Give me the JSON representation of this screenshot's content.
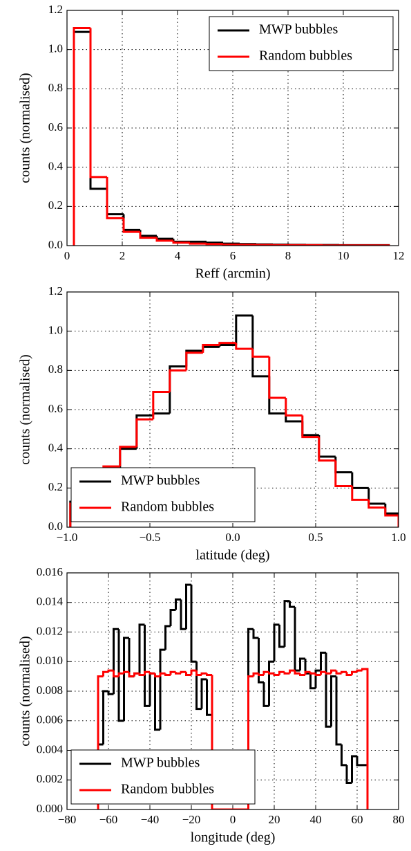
{
  "chart_data": [
    {
      "type": "histogram",
      "xlabel": "Reff (arcmin)",
      "ylabel": "counts (normalised)",
      "bins": [
        0.25,
        0.85,
        1.45,
        2.05,
        2.65,
        3.25,
        3.85,
        4.45,
        5.05,
        5.65,
        6.25,
        6.85,
        7.45,
        8.05,
        8.65,
        9.25,
        9.85,
        10.45,
        11.05,
        11.65
      ],
      "series": [
        {
          "name": "MWP bubbles",
          "color": "#000000",
          "values": [
            1.09,
            0.29,
            0.16,
            0.08,
            0.05,
            0.035,
            0.02,
            0.02,
            0.015,
            0.01,
            0.008,
            0.006,
            0.005,
            0.004,
            0.003,
            0.003,
            0.002,
            0.002,
            0.002
          ]
        },
        {
          "name": "Random bubbles",
          "color": "#ff0000",
          "values": [
            1.11,
            0.35,
            0.14,
            0.07,
            0.04,
            0.025,
            0.015,
            0.01,
            0.008,
            0.005,
            0.004,
            0.003,
            0.002,
            0.002,
            0.002,
            0.001,
            0.001,
            0.001,
            0.001
          ]
        }
      ],
      "xlim": [
        0,
        12
      ],
      "ylim": [
        0,
        1.2
      ],
      "xticks": [
        0,
        2,
        4,
        6,
        8,
        10,
        12
      ],
      "yticks": [
        {
          "value": 0,
          "label": "0.0"
        },
        0.2,
        0.4,
        0.6,
        0.8,
        {
          "value": 1,
          "label": "1.0"
        },
        1.2
      ],
      "grid": true,
      "legend": "upper right"
    },
    {
      "type": "histogram",
      "xlabel": "latitude (deg)",
      "ylabel": "counts (normalised)",
      "bins": [
        -0.98,
        -0.88,
        -0.78,
        -0.68,
        -0.58,
        -0.48,
        -0.38,
        -0.28,
        -0.18,
        -0.08,
        0.02,
        0.12,
        0.22,
        0.32,
        0.42,
        0.52,
        0.62,
        0.72,
        0.82,
        0.92,
        1.0
      ],
      "series": [
        {
          "name": "MWP bubbles",
          "color": "#000000",
          "values": [
            0.13,
            0.28,
            0.3,
            0.4,
            0.57,
            0.58,
            0.82,
            0.9,
            0.92,
            0.93,
            1.08,
            0.77,
            0.58,
            0.54,
            0.47,
            0.36,
            0.28,
            0.2,
            0.12,
            0.07
          ]
        },
        {
          "name": "Random bubbles",
          "color": "#ff0000",
          "values": [
            0.12,
            0.3,
            0.31,
            0.41,
            0.55,
            0.69,
            0.8,
            0.89,
            0.93,
            0.94,
            0.91,
            0.87,
            0.66,
            0.57,
            0.46,
            0.34,
            0.21,
            0.14,
            0.1,
            0.06
          ]
        }
      ],
      "xlim": [
        -1,
        1
      ],
      "ylim": [
        0,
        1.2
      ],
      "xticks": [
        {
          "value": -1,
          "label": "−1.0"
        },
        {
          "value": -0.5,
          "label": "−0.5"
        },
        {
          "value": 0,
          "label": "0.0"
        },
        0.5,
        {
          "value": 1,
          "label": "1.0"
        }
      ],
      "yticks": [
        {
          "value": 0,
          "label": "0.0"
        },
        0.2,
        0.4,
        0.6,
        0.8,
        {
          "value": 1,
          "label": "1.0"
        },
        1.2
      ],
      "grid": true,
      "legend": "lower left"
    },
    {
      "type": "histogram",
      "xlabel": "longitude (deg)",
      "ylabel": "counts (normalised)",
      "bins": [
        -65,
        -62.5,
        -60,
        -57.5,
        -55,
        -52.5,
        -50,
        -47.5,
        -45,
        -42.5,
        -40,
        -37.5,
        -35,
        -32.5,
        -30,
        -27.5,
        -25,
        -22.5,
        -20,
        -17.5,
        -15,
        -12.5,
        -10,
        -7.5,
        -5,
        -2.5,
        0,
        2.5,
        5,
        7.5,
        10,
        12.5,
        15,
        17.5,
        20,
        22.5,
        25,
        27.5,
        30,
        32.5,
        35,
        37.5,
        40,
        42.5,
        45,
        47.5,
        50,
        52.5,
        55,
        57.5,
        60,
        62.5,
        65
      ],
      "series": [
        {
          "name": "MWP bubbles",
          "color": "#000000",
          "values": [
            0.0044,
            0.008,
            0.0078,
            0.0122,
            0.006,
            0.0116,
            0.009,
            0.0092,
            0.0125,
            0.007,
            0.0092,
            0.0054,
            0.0108,
            0.0124,
            0.0135,
            0.0142,
            0.0122,
            0.0152,
            0.01,
            0.0068,
            0.0088,
            0.0064,
            0,
            0,
            0,
            0,
            0,
            0,
            0,
            0.0122,
            0.0116,
            0.0086,
            0.007,
            0.01,
            0.0125,
            0.011,
            0.0141,
            0.0137,
            0.0094,
            0.0102,
            0.0092,
            0.0082,
            0.0094,
            0.0106,
            0.0056,
            0.009,
            0.0044,
            0.003,
            0.0018,
            0.0036,
            0.003,
            0.003
          ]
        },
        {
          "name": "Random bubbles",
          "color": "#ff0000",
          "values": [
            0.009,
            0.0093,
            0.0094,
            0.009,
            0.0092,
            0.0093,
            0.009,
            0.0092,
            0.0091,
            0.0093,
            0.0092,
            0.009,
            0.0092,
            0.0091,
            0.0093,
            0.0092,
            0.0093,
            0.0091,
            0.0094,
            0.0091,
            0.0092,
            0.0091,
            0,
            0,
            0,
            0,
            0,
            0,
            0,
            0.009,
            0.0092,
            0.0091,
            0.0093,
            0.0092,
            0.0091,
            0.0093,
            0.0092,
            0.0094,
            0.0092,
            0.0091,
            0.0093,
            0.0092,
            0.0091,
            0.0093,
            0.0092,
            0.0094,
            0.0092,
            0.0093,
            0.0091,
            0.0093,
            0.0094,
            0.0095
          ]
        }
      ],
      "xlim": [
        -80,
        80
      ],
      "ylim": [
        0,
        0.016
      ],
      "xticks": [
        {
          "value": -80,
          "label": "−80"
        },
        {
          "value": -60,
          "label": "−60"
        },
        {
          "value": -40,
          "label": "−40"
        },
        {
          "value": -20,
          "label": "−20"
        },
        0,
        20,
        40,
        60,
        80
      ],
      "yticks": [
        {
          "value": 0,
          "label": "0.000"
        },
        0.002,
        0.004,
        0.006,
        0.008,
        {
          "value": 0.01,
          "label": "0.010"
        },
        0.012,
        0.014,
        0.016
      ],
      "grid": true,
      "legend": "lower left"
    }
  ]
}
